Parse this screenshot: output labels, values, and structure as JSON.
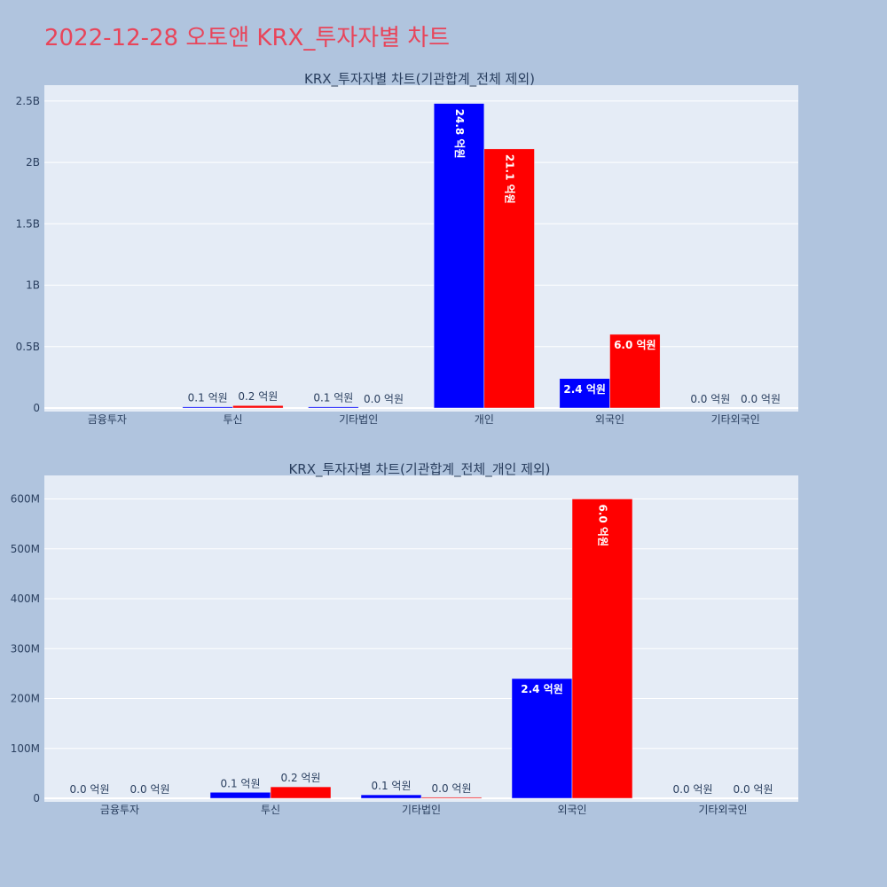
{
  "page_title": "2022-12-28 오토앤 KRX_투자자별 차트",
  "colors": {
    "background": "#b0c4de",
    "plot_background": "#e5ecf6",
    "gridline": "#ffffff",
    "title_color": "#e8455a",
    "axis_text": "#2a3f5f",
    "series_buy": "#0000ff",
    "series_sell": "#ff0000"
  },
  "chart_data": [
    {
      "type": "bar",
      "title": "KRX_투자자별 차트(기관합계_전체 제외)",
      "categories": [
        "금융투자",
        "투신",
        "기타법인",
        "개인",
        "외국인",
        "기타외국인"
      ],
      "series": [
        {
          "color": "#0000ff",
          "values": [
            0,
            10000000,
            10000000,
            2480000000,
            240000000,
            0
          ],
          "labels": [
            "",
            "0.1 억원",
            "0.1 억원",
            "24.8 억원",
            "2.4 억원",
            "0.0 억원"
          ]
        },
        {
          "color": "#ff0000",
          "values": [
            0,
            20000000,
            0,
            2110000000,
            600000000,
            0
          ],
          "labels": [
            "",
            "0.2 억원",
            "0.0 억원",
            "21.1 억원",
            "6.0 억원",
            "0.0 억원"
          ]
        }
      ],
      "ylim": [
        0,
        2600000000
      ],
      "yticks": [
        0,
        500000000,
        1000000000,
        1500000000,
        2000000000,
        2500000000
      ],
      "ytick_labels": [
        "0",
        "0.5B",
        "1B",
        "1.5B",
        "2B",
        "2.5B"
      ],
      "grid": true,
      "legend": "none"
    },
    {
      "type": "bar",
      "title": "KRX_투자자별 차트(기관합계_전체_개인 제외)",
      "categories": [
        "금융투자",
        "투신",
        "기타법인",
        "외국인",
        "기타외국인"
      ],
      "series": [
        {
          "color": "#0000ff",
          "values": [
            0,
            12000000,
            7000000,
            240000000,
            0
          ],
          "labels": [
            "0.0 억원",
            "0.1 억원",
            "0.1 억원",
            "2.4 억원",
            "0.0 억원"
          ]
        },
        {
          "color": "#ff0000",
          "values": [
            0,
            23000000,
            2000000,
            600000000,
            0
          ],
          "labels": [
            "0.0 억원",
            "0.2 억원",
            "0.0 억원",
            "6.0 억원",
            "0.0 억원"
          ]
        }
      ],
      "ylim": [
        0,
        640000000
      ],
      "yticks": [
        0,
        100000000,
        200000000,
        300000000,
        400000000,
        500000000,
        600000000
      ],
      "ytick_labels": [
        "0",
        "100M",
        "200M",
        "300M",
        "400M",
        "500M",
        "600M"
      ],
      "grid": true,
      "legend": "none"
    }
  ]
}
